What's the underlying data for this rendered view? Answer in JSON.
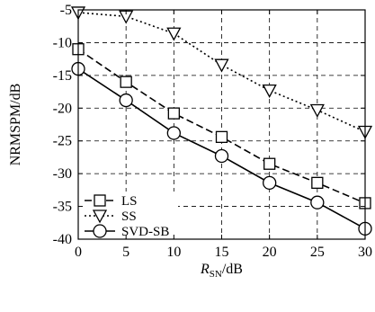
{
  "chart_data": {
    "type": "line",
    "xlabel": "R",
    "xlabel_sub": "SN",
    "xlabel_unit": "/dB",
    "ylabel": "NRMSPM/dB",
    "xlim": [
      0,
      30
    ],
    "ylim": [
      -40,
      -5
    ],
    "xticks": [
      0,
      5,
      10,
      15,
      20,
      25,
      30
    ],
    "yticks": [
      -5,
      -10,
      -15,
      -20,
      -25,
      -30,
      -35,
      -40
    ],
    "grid": "dashed",
    "legend_position": "lower-left",
    "x": [
      0,
      5,
      10,
      15,
      20,
      25,
      30
    ],
    "series": [
      {
        "name": "LS",
        "values": [
          -11,
          -16,
          -20.8,
          -24.4,
          -28.5,
          -31.4,
          -34.5
        ],
        "marker": "square",
        "line": "dashed"
      },
      {
        "name": "SS",
        "values": [
          -5.4,
          -6,
          -8.6,
          -13.4,
          -17.3,
          -20.3,
          -23.6
        ],
        "marker": "triangle-down",
        "line": "dotted"
      },
      {
        "name": "SVD-SB",
        "values": [
          -14,
          -18.8,
          -23.8,
          -27.3,
          -31.4,
          -34.4,
          -38.4
        ],
        "marker": "circle",
        "line": "solid"
      }
    ]
  }
}
